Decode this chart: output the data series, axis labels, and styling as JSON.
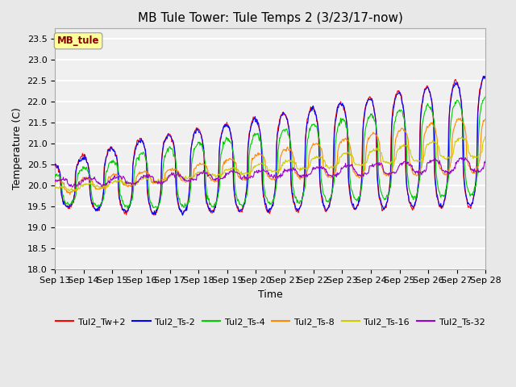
{
  "title": "MB Tule Tower: Tule Temps 2 (3/23/17-now)",
  "xlabel": "Time",
  "ylabel": "Temperature (C)",
  "ylim": [
    18.0,
    23.75
  ],
  "yticks": [
    18.0,
    18.5,
    19.0,
    19.5,
    20.0,
    20.5,
    21.0,
    21.5,
    22.0,
    22.5,
    23.0,
    23.5
  ],
  "start_day": 13,
  "end_day": 28,
  "annotation_text": "MB_tule",
  "annotation_color": "#8B0000",
  "annotation_bg": "#FFFF99",
  "series": [
    {
      "label": "Tul2_Tw+2",
      "color": "#FF0000"
    },
    {
      "label": "Tul2_Ts-2",
      "color": "#0000FF"
    },
    {
      "label": "Tul2_Ts-4",
      "color": "#00CC00"
    },
    {
      "label": "Tul2_Ts-8",
      "color": "#FF8800"
    },
    {
      "label": "Tul2_Ts-16",
      "color": "#CCCC00"
    },
    {
      "label": "Tul2_Ts-32",
      "color": "#9900CC"
    }
  ],
  "bg_color": "#E8E8E8",
  "plot_bg": "#F0F0F0",
  "grid_color": "#FFFFFF",
  "title_fontsize": 11,
  "axis_fontsize": 9,
  "tick_fontsize": 8
}
